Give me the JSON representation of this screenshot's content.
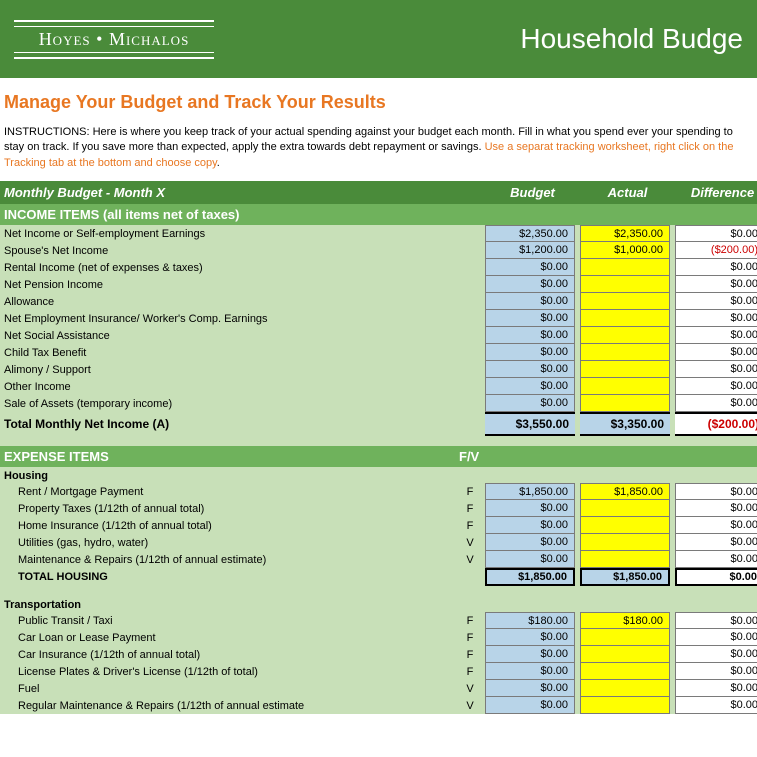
{
  "header": {
    "brand_left": "Hoyes",
    "brand_dot": "•",
    "brand_right": "Michalos",
    "title": "Household Budge"
  },
  "main_title": "Manage Your Budget and Track Your Results",
  "instructions": {
    "part1": "INSTRUCTIONS: Here is where you keep track of your actual spending against your budget each month. Fill in what you spend ever your spending to stay on track. If you save more than expected, apply the extra towards debt repayment or savings. ",
    "part2": "Use a separat tracking worksheet, right click on the Tracking tab at the bottom and choose copy"
  },
  "sub_header": {
    "title": "Monthly Budget - Month X",
    "col1": "Budget",
    "col2": "Actual",
    "col3": "Difference"
  },
  "income": {
    "section_title": "INCOME ITEMS (all items net of taxes)",
    "rows": [
      {
        "label": "Net Income or Self-employment Earnings",
        "budget": "$2,350.00",
        "actual": "$2,350.00",
        "diff": "$0.00",
        "neg": false
      },
      {
        "label": "Spouse's Net Income",
        "budget": "$1,200.00",
        "actual": "$1,000.00",
        "diff": "($200.00)",
        "neg": true
      },
      {
        "label": "Rental Income (net of expenses & taxes)",
        "budget": "$0.00",
        "actual": "",
        "diff": "$0.00",
        "neg": false
      },
      {
        "label": "Net Pension Income",
        "budget": "$0.00",
        "actual": "",
        "diff": "$0.00",
        "neg": false
      },
      {
        "label": "Allowance",
        "budget": "$0.00",
        "actual": "",
        "diff": "$0.00",
        "neg": false
      },
      {
        "label": "Net Employment Insurance/ Worker's Comp. Earnings",
        "budget": "$0.00",
        "actual": "",
        "diff": "$0.00",
        "neg": false
      },
      {
        "label": "Net Social Assistance",
        "budget": "$0.00",
        "actual": "",
        "diff": "$0.00",
        "neg": false
      },
      {
        "label": "Child Tax Benefit",
        "budget": "$0.00",
        "actual": "",
        "diff": "$0.00",
        "neg": false
      },
      {
        "label": "Alimony / Support",
        "budget": "$0.00",
        "actual": "",
        "diff": "$0.00",
        "neg": false
      },
      {
        "label": "Other Income",
        "budget": "$0.00",
        "actual": "",
        "diff": "$0.00",
        "neg": false
      },
      {
        "label": "Sale of Assets (temporary income)",
        "budget": "$0.00",
        "actual": "",
        "diff": "$0.00",
        "neg": false
      }
    ],
    "total": {
      "label": "Total Monthly Net Income (A)",
      "budget": "$3,550.00",
      "actual": "$3,350.00",
      "diff": "($200.00)",
      "neg": true
    }
  },
  "expense": {
    "section_title": "EXPENSE ITEMS",
    "fv_label": "F/V",
    "categories": [
      {
        "name": "Housing",
        "rows": [
          {
            "label": "Rent / Mortgage Payment",
            "fv": "F",
            "budget": "$1,850.00",
            "actual": "$1,850.00",
            "diff": "$0.00"
          },
          {
            "label": "Property Taxes (1/12th of annual total)",
            "fv": "F",
            "budget": "$0.00",
            "actual": "",
            "diff": "$0.00"
          },
          {
            "label": "Home Insurance (1/12th of annual total)",
            "fv": "F",
            "budget": "$0.00",
            "actual": "",
            "diff": "$0.00"
          },
          {
            "label": "Utilities (gas, hydro, water)",
            "fv": "V",
            "budget": "$0.00",
            "actual": "",
            "diff": "$0.00"
          },
          {
            "label": "Maintenance & Repairs (1/12th of annual estimate)",
            "fv": "V",
            "budget": "$0.00",
            "actual": "",
            "diff": "$0.00"
          }
        ],
        "subtotal": {
          "label": "TOTAL HOUSING",
          "budget": "$1,850.00",
          "actual": "$1,850.00",
          "diff": "$0.00"
        }
      },
      {
        "name": "Transportation",
        "rows": [
          {
            "label": "Public Transit / Taxi",
            "fv": "F",
            "budget": "$180.00",
            "actual": "$180.00",
            "diff": "$0.00"
          },
          {
            "label": "Car Loan or Lease Payment",
            "fv": "F",
            "budget": "$0.00",
            "actual": "",
            "diff": "$0.00"
          },
          {
            "label": "Car Insurance (1/12th of annual total)",
            "fv": "F",
            "budget": "$0.00",
            "actual": "",
            "diff": "$0.00"
          },
          {
            "label": "License Plates & Driver's License (1/12th of total)",
            "fv": "F",
            "budget": "$0.00",
            "actual": "",
            "diff": "$0.00"
          },
          {
            "label": "Fuel",
            "fv": "V",
            "budget": "$0.00",
            "actual": "",
            "diff": "$0.00"
          },
          {
            "label": "Regular Maintenance & Repairs (1/12th of annual estimate",
            "fv": "V",
            "budget": "$0.00",
            "actual": "",
            "diff": "$0.00"
          }
        ]
      }
    ]
  }
}
